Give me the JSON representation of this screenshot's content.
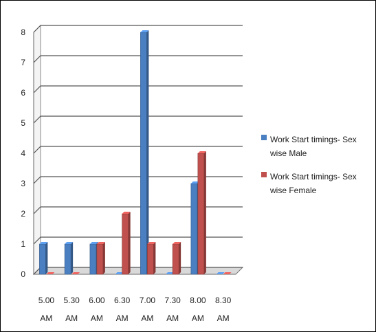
{
  "chart_data": {
    "type": "bar",
    "categories": [
      [
        "5.00",
        "AM"
      ],
      [
        "5.30",
        "AM"
      ],
      [
        "6.00",
        "AM"
      ],
      [
        "6.30",
        "AM"
      ],
      [
        "7.00",
        "AM"
      ],
      [
        "7.30",
        "AM"
      ],
      [
        "8.00",
        "AM"
      ],
      [
        "8.30",
        "AM"
      ]
    ],
    "series": [
      {
        "name": "Work Start timings- Sex wise Male",
        "values": [
          1,
          1,
          1,
          0,
          8,
          0,
          3,
          0
        ],
        "color": "#4a7fc1"
      },
      {
        "name": "Work Start timings- Sex wise Female",
        "values": [
          0,
          0,
          1,
          2,
          1,
          1,
          4,
          0
        ],
        "color": "#c0504d"
      }
    ],
    "yticks": [
      0,
      1,
      2,
      3,
      4,
      5,
      6,
      7,
      8
    ],
    "ylim": [
      0,
      8
    ],
    "grid": true,
    "legend_position": "right",
    "style": "3d-clustered-column"
  }
}
